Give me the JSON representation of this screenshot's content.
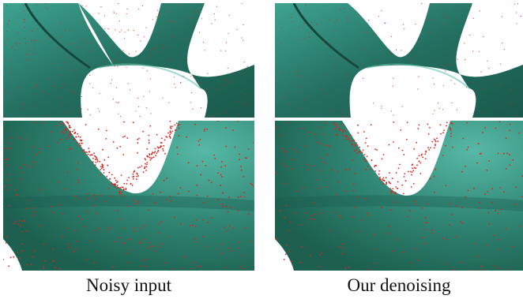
{
  "captions": {
    "left": "Noisy input",
    "right": "Our denoising"
  },
  "colors": {
    "surface_dark": "#1a5a4c",
    "surface_mid": "#2f8472",
    "surface_light": "#4fb3a0",
    "noise_points": "#e0201a",
    "background": "#ffffff"
  }
}
